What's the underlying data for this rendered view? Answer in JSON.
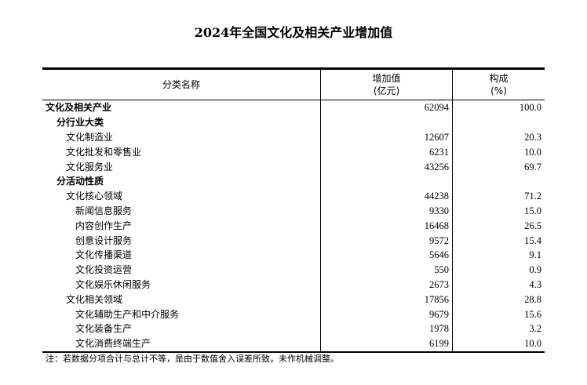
{
  "title": "2024年全国文化及相关产业增加值",
  "headers": {
    "name": "分类名称",
    "value_l1": "增加值",
    "value_l2": "(亿元)",
    "share_l1": "构成",
    "share_l2": "(%)"
  },
  "rows": [
    {
      "name": "文化及相关产业",
      "value": "62094",
      "share": "100.0",
      "level": "l0"
    },
    {
      "name": "分行业大类",
      "value": "",
      "share": "",
      "level": "l1b"
    },
    {
      "name": "文化制造业",
      "value": "12607",
      "share": "20.3",
      "level": "l2"
    },
    {
      "name": "文化批发和零售业",
      "value": "6231",
      "share": "10.0",
      "level": "l2"
    },
    {
      "name": "文化服务业",
      "value": "43256",
      "share": "69.7",
      "level": "l2"
    },
    {
      "name": "分活动性质",
      "value": "",
      "share": "",
      "level": "l1b"
    },
    {
      "name": "文化核心领域",
      "value": "44238",
      "share": "71.2",
      "level": "l2"
    },
    {
      "name": "新闻信息服务",
      "value": "9330",
      "share": "15.0",
      "level": "l3"
    },
    {
      "name": "内容创作生产",
      "value": "16468",
      "share": "26.5",
      "level": "l3"
    },
    {
      "name": "创意设计服务",
      "value": "9572",
      "share": "15.4",
      "level": "l3"
    },
    {
      "name": "文化传播渠道",
      "value": "5646",
      "share": "9.1",
      "level": "l3"
    },
    {
      "name": "文化投资运营",
      "value": "550",
      "share": "0.9",
      "level": "l3"
    },
    {
      "name": "文化娱乐休闲服务",
      "value": "2673",
      "share": "4.3",
      "level": "l3"
    },
    {
      "name": "文化相关领域",
      "value": "17856",
      "share": "28.8",
      "level": "l2"
    },
    {
      "name": "文化辅助生产和中介服务",
      "value": "9679",
      "share": "15.6",
      "level": "l3"
    },
    {
      "name": "文化装备生产",
      "value": "1978",
      "share": "3.2",
      "level": "l3"
    },
    {
      "name": "文化消费终端生产",
      "value": "6199",
      "share": "10.0",
      "level": "l3"
    }
  ],
  "note": "注：若数据分项合计与总计不等，是由于数值舍入误差所致，未作机械调整。"
}
